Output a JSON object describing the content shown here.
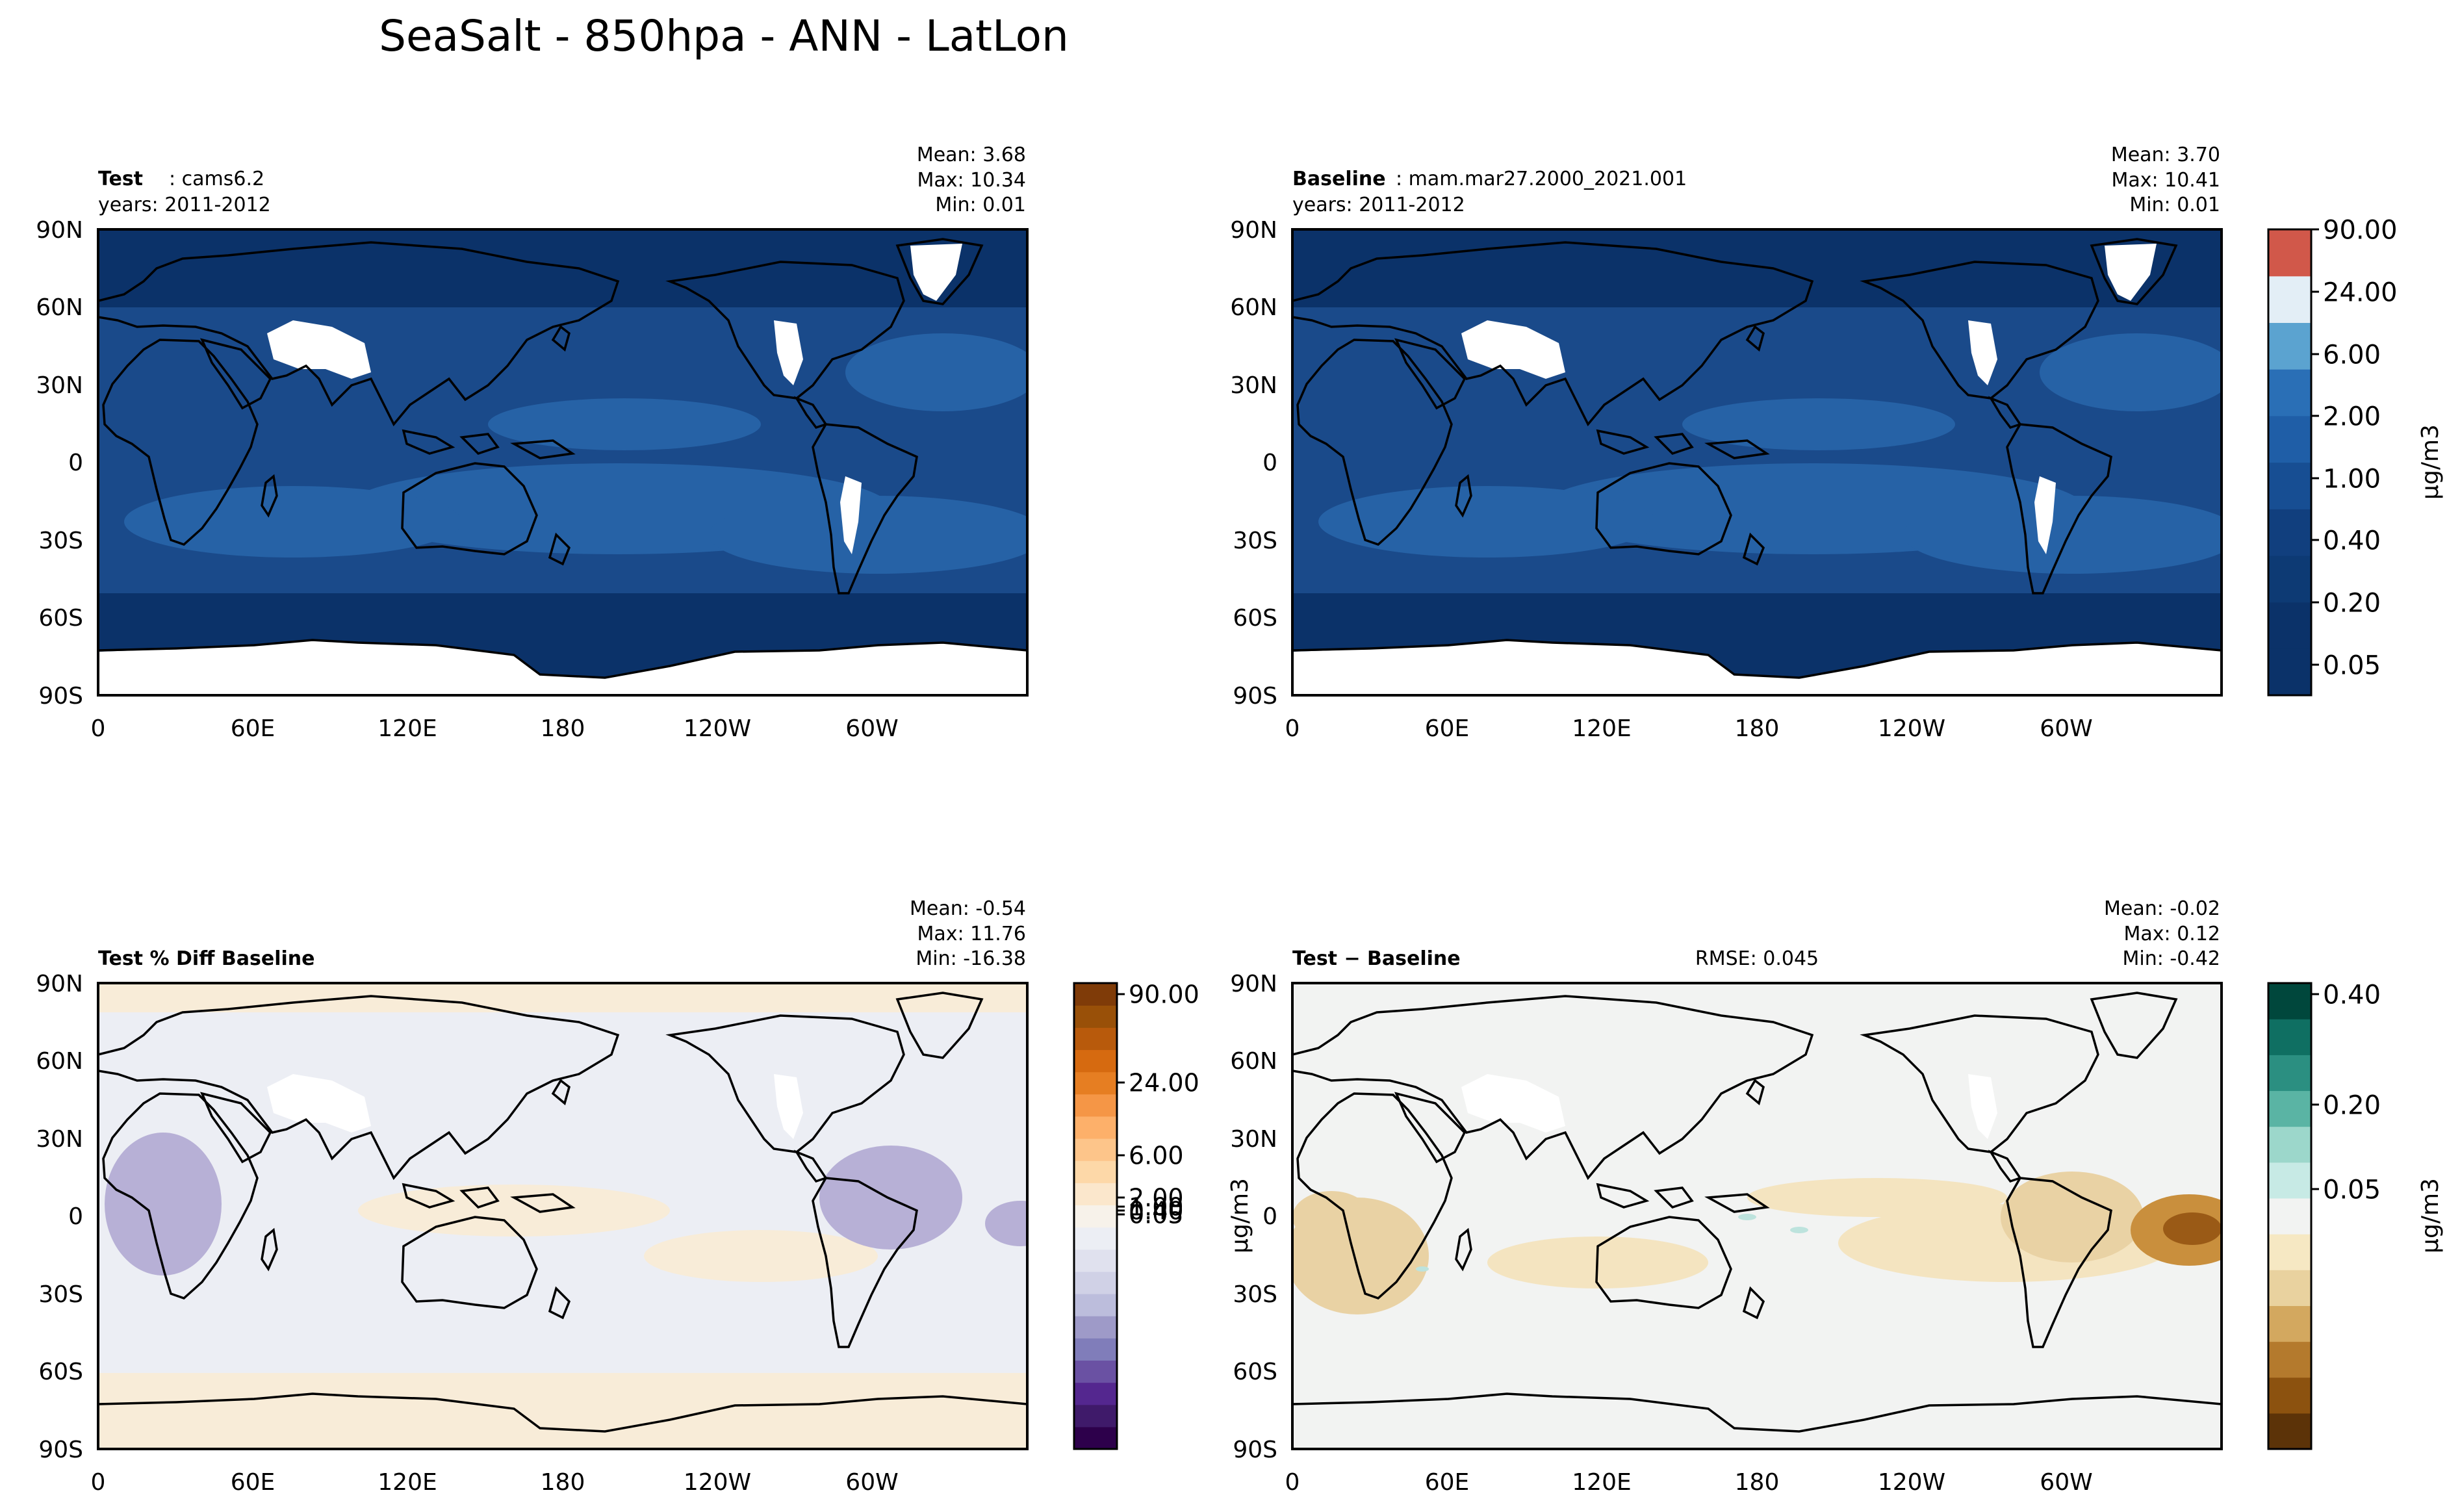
{
  "figure_title": "SeaSalt - 850hpa - ANN - LatLon",
  "x_ticks": [
    "0",
    "60E",
    "120E",
    "180",
    "120W",
    "60W"
  ],
  "y_ticks": [
    "90N",
    "60N",
    "30N",
    "0",
    "30S",
    "60S",
    "90S"
  ],
  "colors": {
    "ocean_navy": "#0b3269",
    "ocean_mid": "#1a4a8a",
    "ocean_light": "#2662a6",
    "land": "#ffffff",
    "diff_background": "#eceef4",
    "diff_warm": "#f8ecd8",
    "diff_purple": "#b7b0d6",
    "abs_background": "#f2f3f2",
    "abs_tan": "#e9d2a4",
    "abs_brown": "#9a5a16",
    "abs_teal": "#bde3dd"
  },
  "chart_data": [
    {
      "type": "heatmap",
      "name": "test",
      "title_bold": "Test",
      "title_rest": ": cams6.2",
      "subtitle": "years: 2011-2012",
      "stats": [
        "Mean:  3.68",
        "Max: 10.34",
        "Min:  0.01"
      ],
      "xlim": [
        0,
        360
      ],
      "ylim": [
        -90,
        90
      ]
    },
    {
      "type": "heatmap",
      "name": "baseline",
      "title_bold": "Baseline",
      "title_rest": ": mam.mar27.2000_2021.001",
      "subtitle": "years: 2011-2012",
      "stats": [
        "Mean:  3.70",
        "Max: 10.41",
        "Min:  0.01"
      ],
      "xlim": [
        0,
        360
      ],
      "ylim": [
        -90,
        90
      ]
    },
    {
      "type": "heatmap",
      "name": "percent-diff",
      "title_bold": "Test % Diff Baseline",
      "title_rest": "",
      "stats": [
        "Mean: -0.54",
        "Max: 11.76",
        "Min: -16.38"
      ],
      "xlim": [
        0,
        360
      ],
      "ylim": [
        -90,
        90
      ]
    },
    {
      "type": "heatmap",
      "name": "difference",
      "title_bold": "Test − Baseline",
      "title_rest": "",
      "rmse": "RMSE: 0.045",
      "stats": [
        "Mean: -0.02",
        "Max:  0.12",
        "Min: -0.42"
      ],
      "xlim": [
        0,
        360
      ],
      "ylim": [
        -90,
        90
      ]
    }
  ],
  "colorbars": [
    {
      "name": "field",
      "label": "μg/m3",
      "tick_labels": [
        "90.00",
        "24.00",
        "6.00",
        "2.00",
        "1.00",
        "0.40",
        "0.20",
        "0.05"
      ],
      "colors": [
        "#0b3269",
        "#0b3269",
        "#0d3a74",
        "#113f7e",
        "#174e93",
        "#1f5ea7",
        "#2a6fb6",
        "#5ba3d0",
        "#e3eef6",
        "#d1584a"
      ]
    },
    {
      "name": "percent-diff",
      "label": "μg/m3",
      "tick_labels": [
        "90.00",
        "24.00",
        "6.00",
        "2.00",
        "1.00",
        "0.40",
        "0.05"
      ],
      "colors": [
        "#2d004b",
        "#3f1a6a",
        "#54278f",
        "#6a51a3",
        "#807dba",
        "#9e9ac8",
        "#bcbddc",
        "#d0d1e6",
        "#e0e1ee",
        "#eceef4",
        "#f7f2ea",
        "#fbe7cc",
        "#fdd8a8",
        "#fdc58a",
        "#fdb06a",
        "#f59646",
        "#e67e22",
        "#d66a10",
        "#b85a0c",
        "#995008",
        "#7f3b08"
      ]
    },
    {
      "name": "difference",
      "label": "μg/m3",
      "tick_labels": [
        "0.40",
        "0.20",
        "0.05"
      ],
      "colors": [
        "#5c3308",
        "#8c520f",
        "#b47a2d",
        "#d3a85f",
        "#e9d29f",
        "#f6e8c3",
        "#f2f3f2",
        "#c7eae5",
        "#9cd7cb",
        "#5ab4a4",
        "#2b8f81",
        "#0f6f62",
        "#00473c"
      ]
    }
  ]
}
